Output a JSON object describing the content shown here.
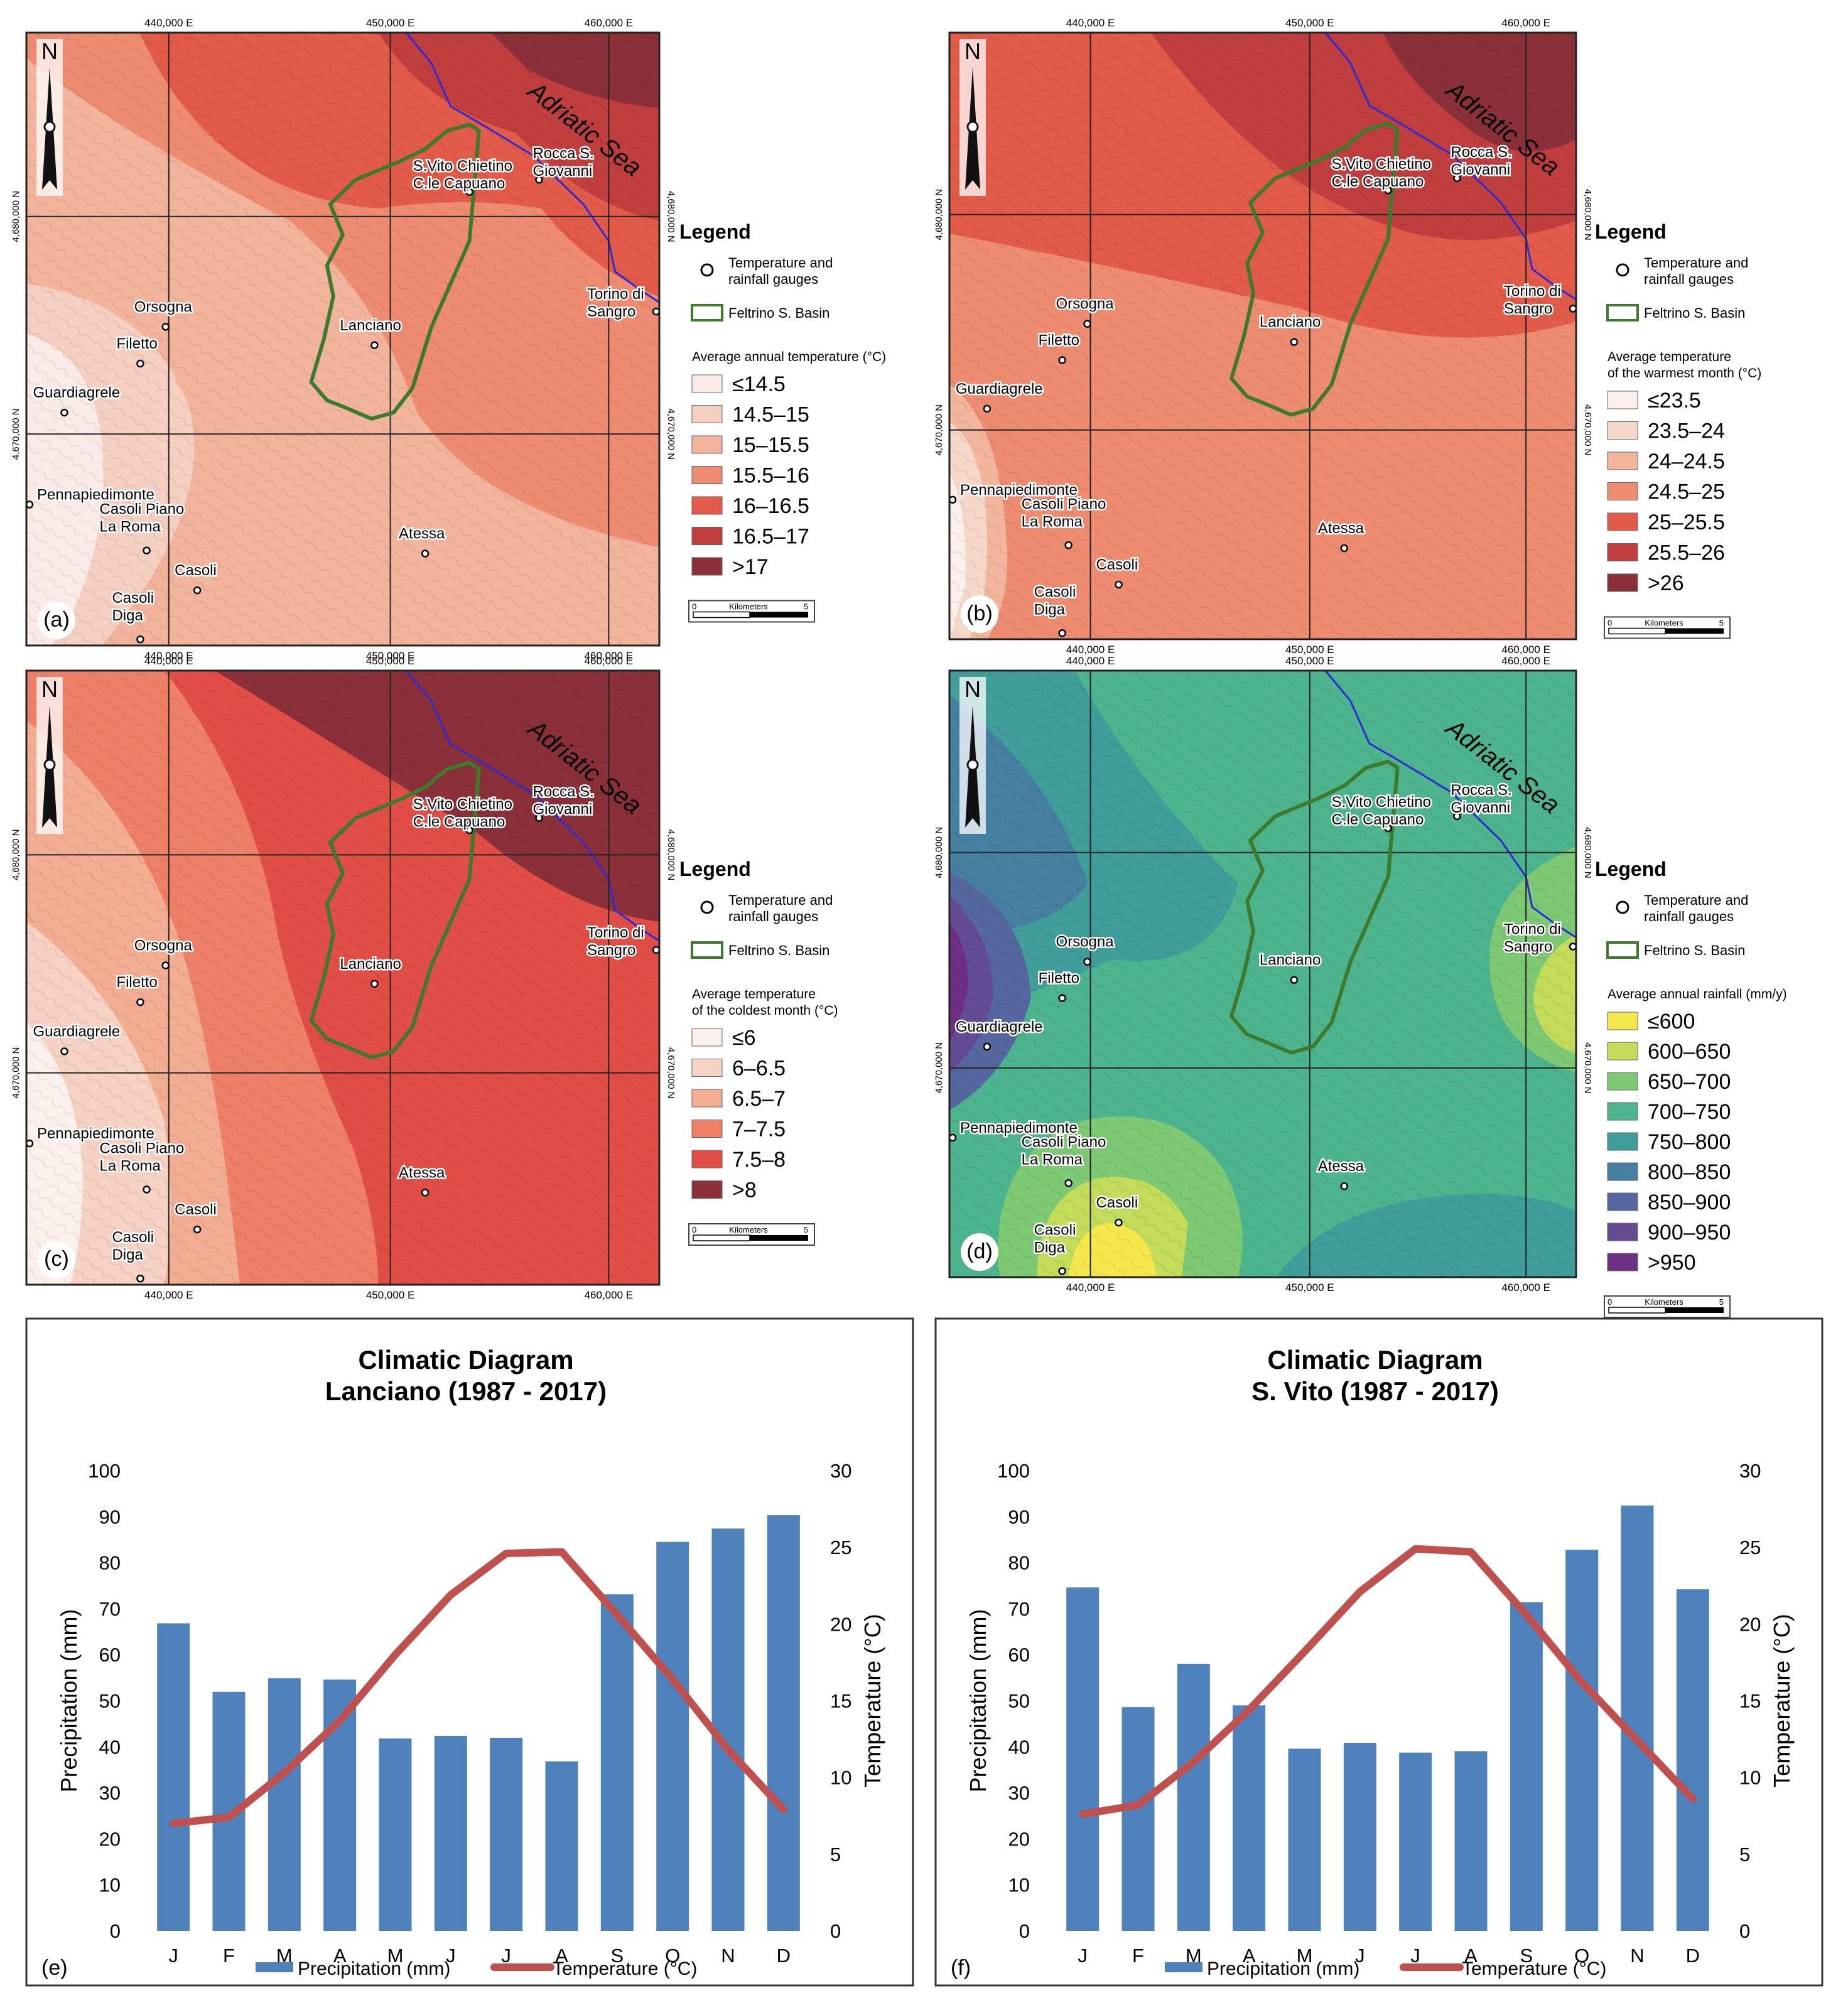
{
  "common": {
    "north_label": "N",
    "sea_label": "Adriatic Sea",
    "legend_title": "Legend",
    "legend_gauges": "Temperature and rainfall gauges",
    "legend_basin": "Feltrino S. Basin",
    "scalebar_label": "Kilometers",
    "scalebar_zero": "0",
    "scalebar_max": "5",
    "coord_x": [
      "440,000 E",
      "450,000 E",
      "460,000 E"
    ],
    "coord_y_top": "4,680,000 N",
    "coord_y_bottom": "4,670,000 N",
    "stations": [
      "S.Vito Chietino C.le Capuano",
      "Rocca S. Giovanni",
      "Torino di Sangro",
      "Orsogna",
      "Filetto",
      "Lanciano",
      "Guardiagrele",
      "Pennapiedimonte",
      "Casoli Piano La Roma",
      "Atessa",
      "Casoli",
      "Casoli Diga"
    ]
  },
  "maps": [
    {
      "id": "a",
      "panel_label": "(a)",
      "legend_heading": "Average annual temperature (°C)",
      "classes": [
        {
          "label": "≤14.5",
          "color": "#faebe6"
        },
        {
          "label": "14.5–15",
          "color": "#f5cfc0"
        },
        {
          "label": "15–15.5",
          "color": "#f2b49c"
        },
        {
          "label": "15.5–16",
          "color": "#ee8c72"
        },
        {
          "label": "16–16.5",
          "color": "#e25a48"
        },
        {
          "label": "16.5–17",
          "color": "#c13e3e"
        },
        {
          "label": ">17",
          "color": "#8b3038"
        }
      ]
    },
    {
      "id": "b",
      "panel_label": "(b)",
      "legend_heading": "Average temperature of the warmest month (°C)",
      "classes": [
        {
          "label": "≤23.5",
          "color": "#fbf0ec"
        },
        {
          "label": "23.5–24",
          "color": "#f6d8ca"
        },
        {
          "label": "24–24.5",
          "color": "#f2b69c"
        },
        {
          "label": "24.5–25",
          "color": "#ee8c72"
        },
        {
          "label": "25–25.5",
          "color": "#e25a48"
        },
        {
          "label": "25.5–26",
          "color": "#c13e3e"
        },
        {
          "label": ">26",
          "color": "#8b3038"
        }
      ]
    },
    {
      "id": "c",
      "panel_label": "(c)",
      "legend_heading": "Average temperature of the coldest month (°C)",
      "classes": [
        {
          "label": "≤6",
          "color": "#fbf0ec"
        },
        {
          "label": "6–6.5",
          "color": "#f6d2c2"
        },
        {
          "label": "6.5–7",
          "color": "#f2ad92"
        },
        {
          "label": "7–7.5",
          "color": "#ee8068"
        },
        {
          "label": "7.5–8",
          "color": "#e04e45"
        },
        {
          "label": ">8",
          "color": "#8b3038"
        }
      ]
    },
    {
      "id": "d",
      "panel_label": "(d)",
      "legend_heading": "Average annual rainfall (mm/y)",
      "classes": [
        {
          "label": "≤600",
          "color": "#f6e84c"
        },
        {
          "label": "600–650",
          "color": "#c3dc5a"
        },
        {
          "label": "650–700",
          "color": "#7ec974"
        },
        {
          "label": "700–750",
          "color": "#4db58d"
        },
        {
          "label": "750–800",
          "color": "#3f9e9a"
        },
        {
          "label": "800–850",
          "color": "#4680a0"
        },
        {
          "label": "850–900",
          "color": "#54679e"
        },
        {
          "label": "900–950",
          "color": "#634c93"
        },
        {
          "label": ">950",
          "color": "#6c2f84"
        }
      ]
    }
  ],
  "chart_data": [
    {
      "type": "bar",
      "panel_label": "(e)",
      "title": "Climatic Diagram",
      "subtitle": "Lanciano (1987 - 2017)",
      "categories": [
        "J",
        "F",
        "M",
        "A",
        "M",
        "J",
        "J",
        "A",
        "S",
        "O",
        "N",
        "D"
      ],
      "series": [
        {
          "name": "Precipitation (mm)",
          "type": "bar",
          "axis": "left",
          "color": "#4f81bd",
          "values": [
            66.8,
            51.9,
            54.9,
            54.6,
            41.8,
            42.3,
            41.9,
            36.8,
            73.1,
            84.5,
            87.4,
            90.3
          ]
        },
        {
          "name": "Temperature (°C)",
          "type": "line",
          "axis": "right",
          "color": "#c0504d",
          "values": [
            7.0,
            7.4,
            10.3,
            13.7,
            18.0,
            21.9,
            24.6,
            24.7,
            20.6,
            16.4,
            11.8,
            7.9
          ]
        }
      ],
      "ylabel": "Precipitation (mm)",
      "ylim": [
        0,
        100
      ],
      "yticks": [
        "0",
        "10",
        "20",
        "30",
        "40",
        "50",
        "60",
        "70",
        "80",
        "90",
        "100"
      ],
      "y2label": "Temperature (°C)",
      "y2lim": [
        0,
        30
      ],
      "y2ticks": [
        "0",
        "5",
        "10",
        "15",
        "20",
        "25",
        "30"
      ]
    },
    {
      "type": "bar",
      "panel_label": "(f)",
      "title": "Climatic Diagram",
      "subtitle": "S. Vito (1987 - 2017)",
      "categories": [
        "J",
        "F",
        "M",
        "A",
        "M",
        "J",
        "J",
        "A",
        "S",
        "O",
        "N",
        "D"
      ],
      "series": [
        {
          "name": "Precipitation (mm)",
          "type": "bar",
          "axis": "left",
          "color": "#4f81bd",
          "values": [
            74.6,
            48.6,
            58.0,
            49.0,
            39.6,
            40.8,
            38.7,
            39.0,
            71.4,
            82.8,
            92.4,
            74.2
          ]
        },
        {
          "name": "Temperature (°C)",
          "type": "line",
          "axis": "right",
          "color": "#c0504d",
          "values": [
            7.6,
            8.2,
            11.0,
            14.4,
            18.2,
            22.1,
            24.9,
            24.7,
            20.6,
            16.2,
            12.4,
            8.6
          ]
        }
      ],
      "ylabel": "Precipitation (mm)",
      "ylim": [
        0,
        100
      ],
      "yticks": [
        "0",
        "10",
        "20",
        "30",
        "40",
        "50",
        "60",
        "70",
        "80",
        "90",
        "100"
      ],
      "y2label": "Temperature (°C)",
      "y2lim": [
        0,
        30
      ],
      "y2ticks": [
        "0",
        "5",
        "10",
        "15",
        "20",
        "25",
        "30"
      ]
    }
  ]
}
